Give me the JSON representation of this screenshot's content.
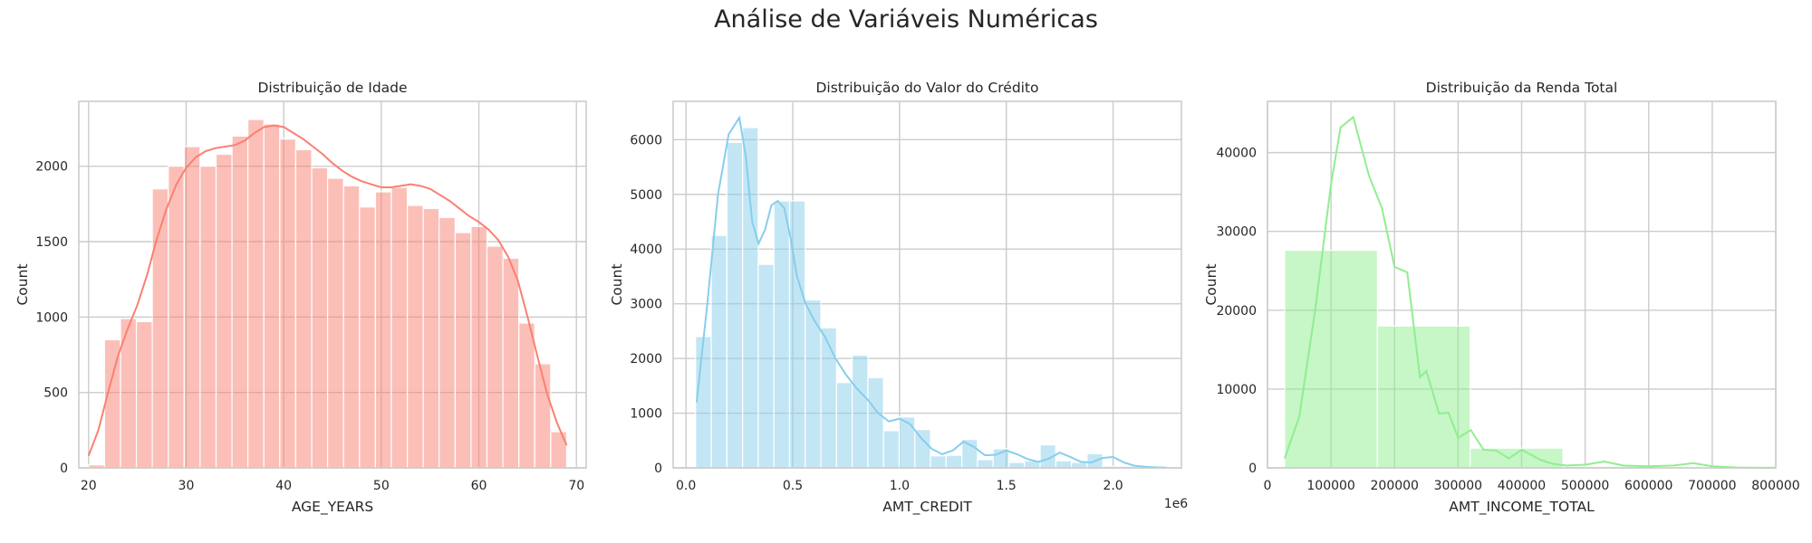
{
  "figure": {
    "suptitle": "Análise de Variáveis Numéricas"
  },
  "chart_data": [
    {
      "type": "bar",
      "title": "Distribuição de Idade",
      "xlabel": "AGE_YEARS",
      "ylabel": "Count",
      "xlim": [
        19.0,
        71.0
      ],
      "ylim": [
        0,
        2430
      ],
      "xticks": [
        20,
        30,
        40,
        50,
        60,
        70
      ],
      "yticks": [
        0,
        500,
        1000,
        1500,
        2000
      ],
      "xtick_labels": [
        "20",
        "30",
        "40",
        "50",
        "60",
        "70"
      ],
      "ytick_labels": [
        "0",
        "500",
        "1000",
        "1500",
        "2000"
      ],
      "offset_label": "",
      "grid": true,
      "bar_color": "#fa8072",
      "bar_opacity": 0.5,
      "bin_edges": [
        20.0,
        21.63,
        23.27,
        24.9,
        26.53,
        28.17,
        29.8,
        31.43,
        33.07,
        34.7,
        36.33,
        37.97,
        39.6,
        41.23,
        42.87,
        44.5,
        46.13,
        47.77,
        49.4,
        51.03,
        52.67,
        54.3,
        55.93,
        57.57,
        59.2,
        60.83,
        62.47,
        64.1,
        65.73,
        67.37,
        69.0
      ],
      "values": [
        20,
        850,
        990,
        970,
        1850,
        2000,
        2130,
        2000,
        2080,
        2200,
        2310,
        2280,
        2180,
        2110,
        1990,
        1920,
        1870,
        1730,
        1830,
        1860,
        1740,
        1720,
        1660,
        1560,
        1600,
        1470,
        1390,
        960,
        690,
        240
      ],
      "kde": {
        "color": "#fa8072",
        "x": [
          20.0,
          21.0,
          22.0,
          23.0,
          24.0,
          25.0,
          26.0,
          27.0,
          28.0,
          29.0,
          30.0,
          31.0,
          32.0,
          33.0,
          34.0,
          35.0,
          36.0,
          37.0,
          38.0,
          39.0,
          40.0,
          41.0,
          42.0,
          43.0,
          44.0,
          45.0,
          46.0,
          47.0,
          48.0,
          49.0,
          50.0,
          51.0,
          52.0,
          53.0,
          54.0,
          55.0,
          56.0,
          57.0,
          58.0,
          59.0,
          60.0,
          61.0,
          62.0,
          63.0,
          64.0,
          65.0,
          66.0,
          67.0,
          68.0,
          69.0
        ],
        "y": [
          80,
          250,
          500,
          740,
          920,
          1080,
          1280,
          1520,
          1720,
          1880,
          1990,
          2060,
          2100,
          2120,
          2130,
          2140,
          2170,
          2220,
          2260,
          2270,
          2260,
          2220,
          2180,
          2130,
          2080,
          2020,
          1970,
          1930,
          1900,
          1880,
          1860,
          1860,
          1870,
          1880,
          1870,
          1850,
          1810,
          1770,
          1720,
          1670,
          1630,
          1580,
          1510,
          1400,
          1240,
          1000,
          740,
          490,
          300,
          150
        ]
      }
    },
    {
      "type": "bar",
      "title": "Distribuição do Valor do Crédito",
      "xlabel": "AMT_CREDIT",
      "ylabel": "Count",
      "xlim": [
        -0.06,
        2.32
      ],
      "ylim": [
        0,
        6700
      ],
      "xticks": [
        0.0,
        0.5,
        1.0,
        1.5,
        2.0
      ],
      "yticks": [
        0,
        1000,
        2000,
        3000,
        4000,
        5000,
        6000
      ],
      "xtick_labels": [
        "0.0",
        "0.5",
        "1.0",
        "1.5",
        "2.0"
      ],
      "ytick_labels": [
        "0",
        "1000",
        "2000",
        "3000",
        "4000",
        "5000",
        "6000"
      ],
      "offset_label": "1e6",
      "grid": true,
      "bar_color": "#87ceeb",
      "bar_opacity": 0.5,
      "bin_edges": [
        0.045,
        0.1183,
        0.1917,
        0.265,
        0.3383,
        0.4117,
        0.485,
        0.5583,
        0.6317,
        0.705,
        0.7783,
        0.8517,
        0.925,
        0.9983,
        1.0717,
        1.145,
        1.2183,
        1.2917,
        1.365,
        1.4383,
        1.5117,
        1.585,
        1.6583,
        1.7317,
        1.805,
        1.8783,
        1.9517,
        2.025,
        2.0983,
        2.1717,
        2.245
      ],
      "values": [
        2400,
        4250,
        5950,
        6220,
        3720,
        4880,
        4880,
        3070,
        2560,
        1560,
        2060,
        1650,
        680,
        930,
        700,
        220,
        230,
        520,
        150,
        350,
        100,
        130,
        420,
        130,
        100,
        260,
        30,
        30,
        10,
        10
      ],
      "kde": {
        "color": "#87ceeb",
        "x": [
          0.05,
          0.1,
          0.15,
          0.2,
          0.25,
          0.28,
          0.31,
          0.34,
          0.37,
          0.4,
          0.43,
          0.46,
          0.49,
          0.52,
          0.56,
          0.6,
          0.65,
          0.7,
          0.75,
          0.8,
          0.85,
          0.9,
          0.95,
          1.0,
          1.05,
          1.1,
          1.15,
          1.2,
          1.25,
          1.3,
          1.35,
          1.4,
          1.45,
          1.5,
          1.55,
          1.6,
          1.65,
          1.7,
          1.75,
          1.8,
          1.85,
          1.9,
          1.95,
          2.0,
          2.05,
          2.1,
          2.15,
          2.2,
          2.25
        ],
        "y": [
          1200,
          3000,
          5000,
          6100,
          6400,
          5700,
          4500,
          4100,
          4350,
          4800,
          4880,
          4750,
          4200,
          3500,
          3000,
          2700,
          2400,
          2000,
          1700,
          1450,
          1250,
          1000,
          850,
          900,
          800,
          550,
          350,
          250,
          320,
          480,
          380,
          230,
          240,
          320,
          250,
          160,
          110,
          170,
          280,
          200,
          110,
          100,
          180,
          200,
          100,
          40,
          20,
          10,
          5
        ]
      }
    },
    {
      "type": "bar",
      "title": "Distribuição da Renda Total",
      "xlabel": "AMT_INCOME_TOTAL",
      "ylabel": "Count",
      "xlim": [
        0,
        800000
      ],
      "ylim": [
        0,
        46500
      ],
      "xticks": [
        0,
        100000,
        200000,
        300000,
        400000,
        500000,
        600000,
        700000,
        800000
      ],
      "yticks": [
        0,
        10000,
        20000,
        30000,
        40000
      ],
      "xtick_labels": [
        "0",
        "100000",
        "200000",
        "300000",
        "400000",
        "500000",
        "600000",
        "700000",
        "800000"
      ],
      "ytick_labels": [
        "0",
        "10000",
        "20000",
        "30000",
        "40000"
      ],
      "offset_label": "",
      "grid": true,
      "bar_color": "#90ee90",
      "bar_opacity": 0.5,
      "bin_edges": [
        27000,
        173000,
        319000,
        465000,
        611000,
        757000
      ],
      "values": [
        27600,
        18000,
        2500,
        200,
        50
      ],
      "kde": {
        "color": "#90ee90",
        "x": [
          27000,
          50000,
          75000,
          100000,
          115000,
          135000,
          160000,
          180000,
          200000,
          220000,
          240000,
          250000,
          270000,
          285000,
          300000,
          320000,
          340000,
          360000,
          380000,
          400000,
          430000,
          450000,
          470000,
          500000,
          530000,
          560000,
          600000,
          640000,
          670000,
          700000,
          740000,
          780000,
          800000
        ],
        "y": [
          1200,
          6500,
          20000,
          36000,
          43200,
          44500,
          37000,
          33000,
          25500,
          24800,
          11500,
          12300,
          6900,
          7000,
          3800,
          4800,
          2300,
          2200,
          1200,
          2300,
          1000,
          500,
          300,
          400,
          800,
          300,
          200,
          300,
          600,
          200,
          50,
          20,
          10
        ]
      }
    }
  ]
}
